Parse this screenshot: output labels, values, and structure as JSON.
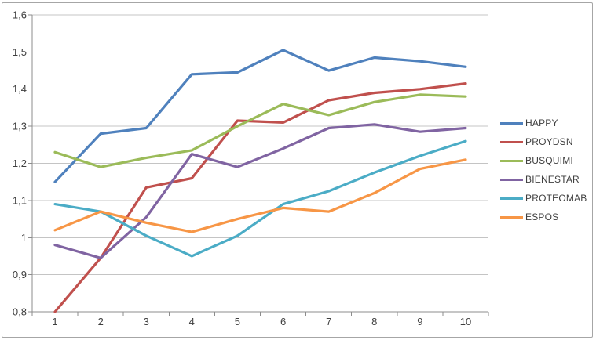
{
  "chart_data": {
    "type": "line",
    "title": "",
    "xlabel": "",
    "ylabel": "",
    "categories": [
      "1",
      "2",
      "3",
      "4",
      "5",
      "6",
      "7",
      "8",
      "9",
      "10"
    ],
    "series": [
      {
        "name": "HAPPY",
        "color": "#4F81BD",
        "values": [
          1.15,
          1.28,
          1.295,
          1.44,
          1.445,
          1.505,
          1.45,
          1.485,
          1.475,
          1.46
        ]
      },
      {
        "name": "PROYDSN",
        "color": "#C0504D",
        "values": [
          0.8,
          0.945,
          1.135,
          1.16,
          1.315,
          1.31,
          1.37,
          1.39,
          1.4,
          1.415
        ]
      },
      {
        "name": "BUSQUIMI",
        "color": "#9BBB59",
        "values": [
          1.23,
          1.19,
          1.215,
          1.235,
          1.3,
          1.36,
          1.33,
          1.365,
          1.385,
          1.38
        ]
      },
      {
        "name": "BIENESTAR",
        "color": "#8064A2",
        "values": [
          0.98,
          0.945,
          1.055,
          1.225,
          1.19,
          1.24,
          1.295,
          1.305,
          1.285,
          1.295
        ]
      },
      {
        "name": "PROTEOMAB",
        "color": "#4BACC6",
        "values": [
          1.09,
          1.07,
          1.005,
          0.95,
          1.005,
          1.09,
          1.125,
          1.175,
          1.22,
          1.26
        ]
      },
      {
        "name": "ESPOS",
        "color": "#F79646",
        "values": [
          1.02,
          1.07,
          1.04,
          1.015,
          1.05,
          1.08,
          1.07,
          1.12,
          1.185,
          1.21
        ]
      }
    ],
    "ylim": [
      0.8,
      1.6
    ],
    "y_tick_step": 0.1,
    "y_tick_labels": [
      "0,8",
      "0,9",
      "1",
      "1,1",
      "1,2",
      "1,3",
      "1,4",
      "1,5",
      "1,6"
    ],
    "x_tick_labels": [
      "1",
      "2",
      "3",
      "4",
      "5",
      "6",
      "7",
      "8",
      "9",
      "10"
    ],
    "grid": true,
    "legend_position": "right"
  },
  "style_colors": {
    "grid": "#C4C4C4",
    "axis": "#8C8C8C",
    "label_text": "#3F3F3F",
    "frame_border": "#A6A6A6",
    "background": "#FFFFFF"
  }
}
